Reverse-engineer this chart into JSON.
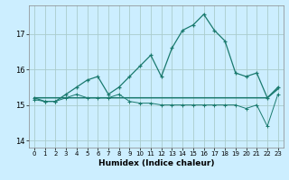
{
  "xlabel": "Humidex (Indice chaleur)",
  "bg_color": "#cceeff",
  "grid_color": "#aacccc",
  "line_color": "#1a7a6e",
  "x_values": [
    0,
    1,
    2,
    3,
    4,
    5,
    6,
    7,
    8,
    9,
    10,
    11,
    12,
    13,
    14,
    15,
    16,
    17,
    18,
    19,
    20,
    21,
    22,
    23
  ],
  "y_curve": [
    15.2,
    15.1,
    15.1,
    15.3,
    15.5,
    15.7,
    15.8,
    15.3,
    15.5,
    15.8,
    16.1,
    16.4,
    15.8,
    16.6,
    17.1,
    17.25,
    17.55,
    17.1,
    16.8,
    15.9,
    15.8,
    15.9,
    15.2,
    15.5
  ],
  "y_low": [
    15.15,
    15.1,
    15.1,
    15.2,
    15.3,
    15.2,
    15.2,
    15.2,
    15.3,
    15.1,
    15.05,
    15.05,
    15.0,
    15.0,
    15.0,
    15.0,
    15.0,
    15.0,
    15.0,
    15.0,
    14.9,
    15.0,
    14.4,
    15.3
  ],
  "y_flat": [
    15.2,
    15.2,
    15.2,
    15.2,
    15.2,
    15.2,
    15.2,
    15.2,
    15.2,
    15.2,
    15.2,
    15.2,
    15.2,
    15.2,
    15.2,
    15.2,
    15.2,
    15.2,
    15.2,
    15.2,
    15.2,
    15.2,
    15.2,
    15.45
  ],
  "ylim": [
    13.8,
    17.8
  ],
  "yticks": [
    14,
    15,
    16,
    17
  ],
  "xticks": [
    0,
    1,
    2,
    3,
    4,
    5,
    6,
    7,
    8,
    9,
    10,
    11,
    12,
    13,
    14,
    15,
    16,
    17,
    18,
    19,
    20,
    21,
    22,
    23
  ]
}
